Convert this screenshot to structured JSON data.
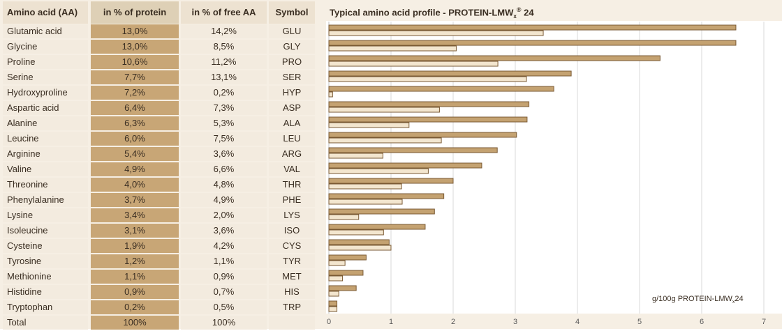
{
  "table": {
    "headers": {
      "name": "Amino acid (AA)",
      "protein": "in % of protein",
      "free": "in % of free AA",
      "symbol": "Symbol"
    },
    "rows": [
      {
        "name": "Glutamic acid",
        "protein": "13,0%",
        "free": "14,2%",
        "symbol": "GLU"
      },
      {
        "name": "Glycine",
        "protein": "13,0%",
        "free": "8,5%",
        "symbol": "GLY"
      },
      {
        "name": "Proline",
        "protein": "10,6%",
        "free": "11,2%",
        "symbol": "PRO"
      },
      {
        "name": "Serine",
        "protein": "7,7%",
        "free": "13,1%",
        "symbol": "SER"
      },
      {
        "name": "Hydroxyproline",
        "protein": "7,2%",
        "free": "0,2%",
        "symbol": "HYP"
      },
      {
        "name": "Aspartic acid",
        "protein": "6,4%",
        "free": "7,3%",
        "symbol": "ASP"
      },
      {
        "name": "Alanine",
        "protein": "6,3%",
        "free": "5,3%",
        "symbol": "ALA"
      },
      {
        "name": "Leucine",
        "protein": "6,0%",
        "free": "7,5%",
        "symbol": "LEU"
      },
      {
        "name": "Arginine",
        "protein": "5,4%",
        "free": "3,6%",
        "symbol": "ARG"
      },
      {
        "name": "Valine",
        "protein": "4,9%",
        "free": "6,6%",
        "symbol": "VAL"
      },
      {
        "name": "Threonine",
        "protein": "4,0%",
        "free": "4,8%",
        "symbol": "THR"
      },
      {
        "name": "Phenylalanine",
        "protein": "3,7%",
        "free": "4,9%",
        "symbol": "PHE"
      },
      {
        "name": "Lysine",
        "protein": "3,4%",
        "free": "2,0%",
        "symbol": "LYS"
      },
      {
        "name": "Isoleucine",
        "protein": "3,1%",
        "free": "3,6%",
        "symbol": "ISO"
      },
      {
        "name": "Cysteine",
        "protein": "1,9%",
        "free": "4,2%",
        "symbol": "CYS"
      },
      {
        "name": "Tyrosine",
        "protein": "1,2%",
        "free": "1,1%",
        "symbol": "TYR"
      },
      {
        "name": "Methionine",
        "protein": "1,1%",
        "free": "0,9%",
        "symbol": "MET"
      },
      {
        "name": "Histidine",
        "protein": "0,9%",
        "free": "0,7%",
        "symbol": "HIS"
      },
      {
        "name": "Tryptophan",
        "protein": "0,2%",
        "free": "0,5%",
        "symbol": "TRP"
      }
    ],
    "total": {
      "name": "Total",
      "protein": "100%",
      "free": "100%",
      "symbol": ""
    }
  },
  "chart_data": {
    "type": "bar",
    "orientation": "horizontal",
    "title": "Typical amino acid profile - PROTEIN-LMW",
    "title_sub": "x",
    "title_sup": "®",
    "title_tail": " 24",
    "annotation": "g/100g PROTEIN-LMW",
    "annotation_sub": "x",
    "annotation_tail": "24",
    "categories": [
      "GLU",
      "GLY",
      "PRO",
      "SER",
      "HYP",
      "ASP",
      "ALA",
      "LEU",
      "ARG",
      "VAL",
      "THR",
      "PHE",
      "LYS",
      "ISO",
      "CYS",
      "TYR",
      "MET",
      "HIS",
      "TRP"
    ],
    "series": [
      {
        "values": [
          6.55,
          6.55,
          5.33,
          3.9,
          3.62,
          3.22,
          3.19,
          3.02,
          2.71,
          2.46,
          2.0,
          1.85,
          1.7,
          1.55,
          0.97,
          0.6,
          0.55,
          0.44,
          0.13
        ],
        "color": "#c4a271"
      },
      {
        "values": [
          3.45,
          2.05,
          2.72,
          3.18,
          0.06,
          1.78,
          1.29,
          1.81,
          0.87,
          1.6,
          1.17,
          1.18,
          0.48,
          0.88,
          1.0,
          0.26,
          0.22,
          0.16,
          0.13
        ],
        "color": "#f3e6cf"
      }
    ],
    "xlim": [
      0,
      7
    ],
    "xticks": [
      0,
      1,
      2,
      3,
      4,
      5,
      6,
      7
    ],
    "grid": true,
    "stroke_color": "#7a5a34"
  }
}
